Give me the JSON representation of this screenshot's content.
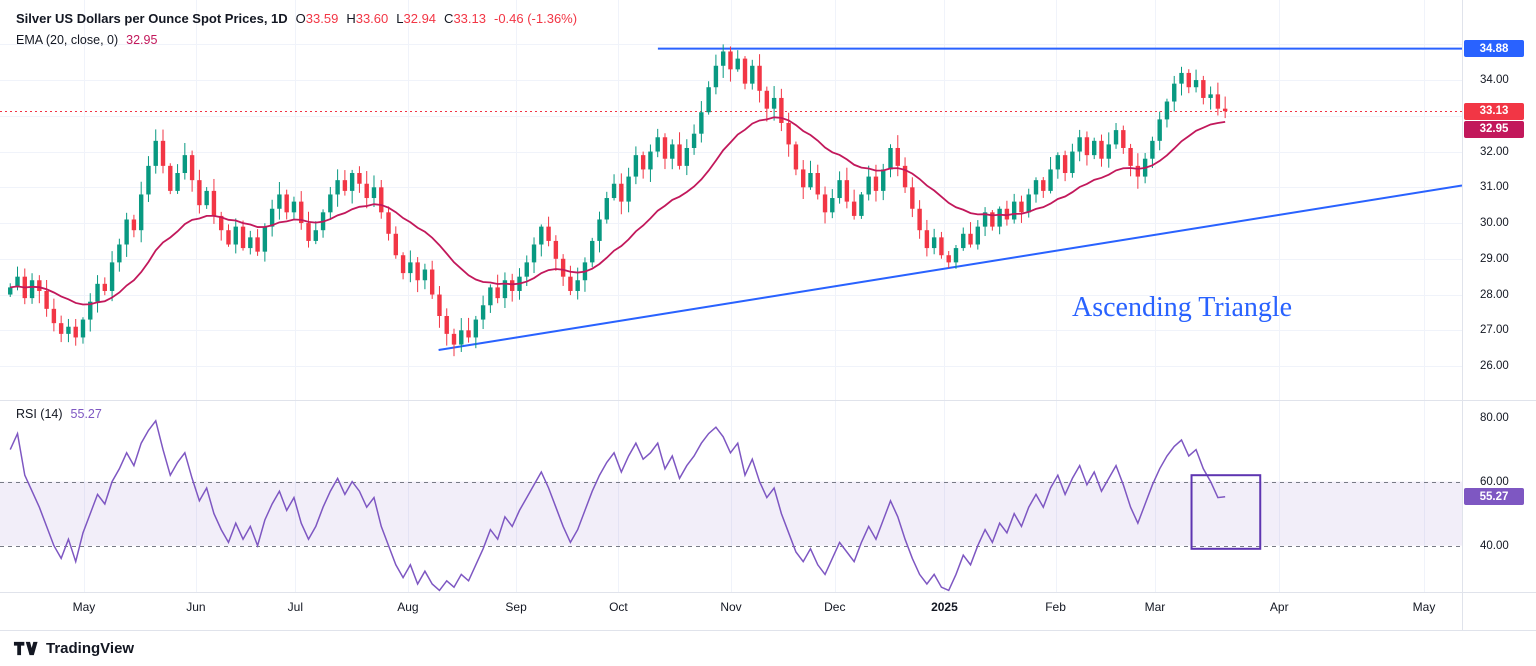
{
  "header": {
    "title": "Silver US Dollars per Ounce Spot Prices, 1D",
    "ohlc": [
      {
        "label": "O",
        "value": "33.59"
      },
      {
        "label": "H",
        "value": "33.60"
      },
      {
        "label": "L",
        "value": "32.94"
      },
      {
        "label": "C",
        "value": "33.13"
      }
    ],
    "change": "-0.46 (-1.36%)",
    "ema_label": "EMA (20, close, 0)",
    "ema_value": "32.95"
  },
  "rsi_header": {
    "label": "RSI (14)",
    "value": "55.27"
  },
  "annotation": {
    "text": "Ascending Triangle",
    "color": "#2962ff"
  },
  "footer": {
    "brand": "TradingView"
  },
  "chart_data": {
    "type": "candlestick",
    "title": "Silver US Dollars per Ounce Spot Prices, 1D",
    "price_pane": {
      "ylim": [
        25.05,
        36.24
      ],
      "y_ticks": [
        34,
        32,
        31,
        30,
        29,
        28,
        27,
        26
      ],
      "grid": [
        35,
        34,
        33,
        32,
        31,
        30,
        29,
        28,
        27,
        26
      ]
    },
    "x_ticks": [
      {
        "label": "May",
        "x": 0.0574,
        "bold": false
      },
      {
        "label": "Jun",
        "x": 0.134,
        "bold": false
      },
      {
        "label": "Jul",
        "x": 0.202,
        "bold": false
      },
      {
        "label": "Aug",
        "x": 0.279,
        "bold": false
      },
      {
        "label": "Sep",
        "x": 0.353,
        "bold": false
      },
      {
        "label": "Oct",
        "x": 0.423,
        "bold": false
      },
      {
        "label": "Nov",
        "x": 0.5,
        "bold": false
      },
      {
        "label": "Dec",
        "x": 0.571,
        "bold": false
      },
      {
        "label": "2025",
        "x": 0.646,
        "bold": true
      },
      {
        "label": "Feb",
        "x": 0.722,
        "bold": false
      },
      {
        "label": "Mar",
        "x": 0.79,
        "bold": false
      },
      {
        "label": "Apr",
        "x": 0.875,
        "bold": false
      },
      {
        "label": "May",
        "x": 0.974,
        "bold": false
      }
    ],
    "candles_x_range": [
      0.007,
      0.838
    ],
    "first_open": 28.0,
    "closes": [
      28.2,
      28.5,
      27.9,
      28.4,
      28.1,
      27.6,
      27.2,
      26.9,
      27.1,
      26.8,
      27.3,
      27.8,
      28.3,
      28.1,
      28.9,
      29.4,
      30.1,
      29.8,
      30.8,
      31.6,
      32.3,
      31.6,
      30.9,
      31.4,
      31.9,
      31.2,
      30.5,
      30.9,
      30.2,
      29.8,
      29.4,
      29.9,
      29.3,
      29.6,
      29.2,
      29.9,
      30.4,
      30.8,
      30.3,
      30.6,
      30.0,
      29.5,
      29.8,
      30.3,
      30.8,
      31.2,
      30.9,
      31.4,
      31.1,
      30.7,
      31.0,
      30.3,
      29.7,
      29.1,
      28.6,
      28.9,
      28.4,
      28.7,
      28.0,
      27.4,
      26.9,
      26.6,
      27.0,
      26.8,
      27.3,
      27.7,
      28.2,
      27.9,
      28.4,
      28.1,
      28.5,
      28.9,
      29.4,
      29.9,
      29.5,
      29.0,
      28.5,
      28.1,
      28.4,
      28.9,
      29.5,
      30.1,
      30.7,
      31.1,
      30.6,
      31.3,
      31.9,
      31.5,
      32.0,
      32.4,
      31.8,
      32.2,
      31.6,
      32.1,
      32.5,
      33.1,
      33.8,
      34.4,
      34.8,
      34.3,
      34.6,
      33.9,
      34.4,
      33.7,
      33.2,
      33.5,
      32.8,
      32.2,
      31.5,
      31.0,
      31.4,
      30.8,
      30.3,
      30.7,
      31.2,
      30.6,
      30.2,
      30.8,
      31.3,
      30.9,
      31.5,
      32.1,
      31.6,
      31.0,
      30.4,
      29.8,
      29.3,
      29.6,
      29.1,
      28.9,
      29.3,
      29.7,
      29.4,
      29.9,
      30.3,
      29.9,
      30.4,
      30.1,
      30.6,
      30.3,
      30.8,
      31.2,
      30.9,
      31.5,
      31.9,
      31.4,
      32.0,
      32.4,
      31.9,
      32.3,
      31.8,
      32.2,
      32.6,
      32.1,
      31.6,
      31.3,
      31.8,
      32.3,
      32.9,
      33.4,
      33.9,
      34.2,
      33.8,
      34.0,
      33.5,
      33.6,
      33.2,
      33.13
    ],
    "ema_period": 20,
    "last_price": 33.13,
    "trendlines": [
      {
        "name": "horizontal-resistance",
        "x1": 0.45,
        "p1": 34.88,
        "x2": 1.0,
        "p2": 34.88
      },
      {
        "name": "ascending-support",
        "x1": 0.3,
        "p1": 26.45,
        "x2": 1.0,
        "p2": 31.05
      }
    ],
    "badges": [
      {
        "label": "34.88",
        "price": 34.88,
        "color": "#2962ff",
        "name": "resistance-price-badge"
      },
      {
        "label": "33.13",
        "price": 33.13,
        "color": "#f23645",
        "name": "last-price-badge"
      },
      {
        "label": "32.95",
        "price": 32.95,
        "color": "#c2185b",
        "name": "ema-price-badge"
      }
    ],
    "colors": {
      "up": "#089981",
      "down": "#f23645",
      "ema": "#c2185b",
      "trendline": "#2962ff",
      "rsi": "#7e57c2",
      "rsi_band": "rgba(126,87,194,0.10)",
      "rsi_level_dash": "#787b86",
      "grid": "#f0f3fa"
    },
    "rsi_pane": {
      "vlim": [
        25.5,
        85.5
      ],
      "y_ticks": [
        80,
        60,
        40
      ],
      "band": [
        40,
        60
      ],
      "last_value": 55.27,
      "badge": {
        "label": "55.27",
        "value": 55.27,
        "color": "#7e57c2",
        "name": "rsi-value-badge"
      },
      "box": {
        "x1": 0.815,
        "x2": 0.862,
        "v1": 39,
        "v2": 62,
        "color": "#5e35b1"
      },
      "values": [
        70,
        75,
        62,
        57,
        52,
        46,
        40,
        36,
        42,
        35,
        44,
        50,
        56,
        53,
        60,
        64,
        69,
        65,
        72,
        76,
        79,
        70,
        62,
        66,
        69,
        61,
        54,
        58,
        50,
        45,
        41,
        47,
        42,
        46,
        40,
        48,
        53,
        57,
        51,
        55,
        47,
        42,
        46,
        52,
        57,
        61,
        56,
        60,
        57,
        52,
        55,
        46,
        40,
        34,
        30,
        34,
        28,
        32,
        28,
        26,
        29,
        27,
        31,
        29,
        34,
        39,
        45,
        42,
        49,
        46,
        51,
        55,
        59,
        63,
        58,
        52,
        46,
        41,
        45,
        51,
        57,
        62,
        66,
        69,
        63,
        68,
        72,
        67,
        69,
        72,
        64,
        68,
        61,
        65,
        68,
        72,
        75,
        77,
        74,
        69,
        72,
        62,
        67,
        60,
        55,
        58,
        50,
        44,
        38,
        35,
        39,
        34,
        31,
        36,
        41,
        38,
        35,
        41,
        46,
        42,
        48,
        54,
        49,
        42,
        36,
        31,
        28,
        31,
        27,
        26,
        31,
        37,
        34,
        40,
        45,
        41,
        47,
        44,
        50,
        46,
        52,
        56,
        52,
        58,
        62,
        56,
        61,
        65,
        59,
        63,
        57,
        61,
        65,
        59,
        52,
        47,
        53,
        59,
        64,
        68,
        71,
        73,
        68,
        70,
        64,
        60,
        55,
        55.27
      ]
    }
  }
}
